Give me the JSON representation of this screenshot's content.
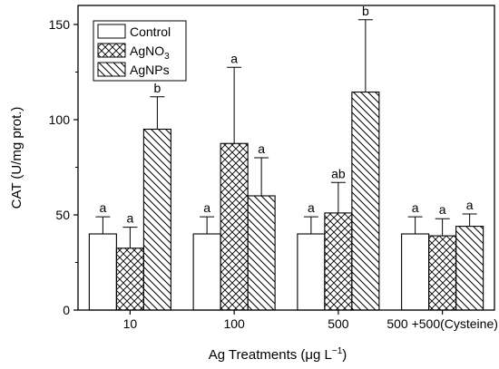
{
  "chart_data": {
    "type": "bar",
    "title": "",
    "xlabel": "Ag Treatments (μg L",
    "xlabel_sup": "−1",
    "xlabel_end": ")",
    "ylabel": "CAT (U/mg prot.)",
    "ylim": [
      0,
      160
    ],
    "yticks": [
      0,
      50,
      100,
      150
    ],
    "categories": [
      "10",
      "100",
      "500",
      "500 +500(Cysteine)"
    ],
    "legend_position": "top-left",
    "grid": false,
    "series": [
      {
        "name": "Control",
        "name_sub": "",
        "pattern": "none",
        "values": [
          40,
          40,
          40,
          40
        ],
        "errors": [
          9,
          9,
          9,
          9
        ],
        "labels": [
          "a",
          "a",
          "a",
          "a"
        ]
      },
      {
        "name": "AgNO",
        "name_sub": "3",
        "pattern": "crosshatch",
        "values": [
          32.5,
          87.5,
          51,
          39
        ],
        "errors": [
          11,
          40,
          16,
          9
        ],
        "labels": [
          "a",
          "a",
          "ab",
          "a"
        ]
      },
      {
        "name": "AgNPs",
        "name_sub": "",
        "pattern": "diagonal",
        "values": [
          95,
          60,
          114.5,
          44
        ],
        "errors": [
          17,
          20,
          38,
          6.5
        ],
        "labels": [
          "b",
          "a",
          "b",
          "a"
        ]
      }
    ]
  }
}
